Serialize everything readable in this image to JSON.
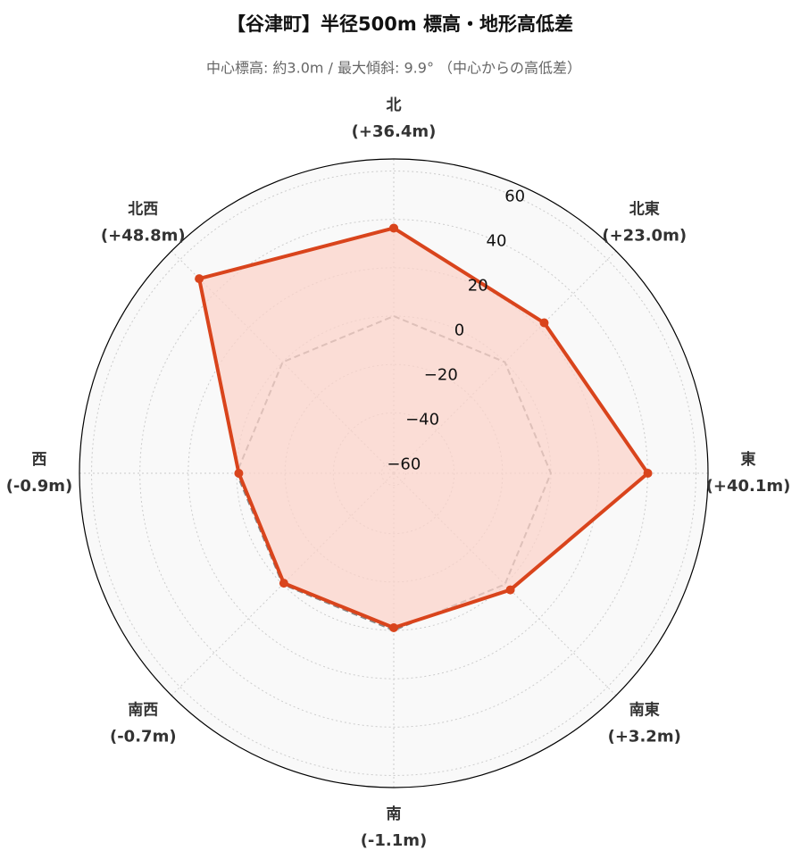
{
  "chart_data": {
    "type": "radar",
    "title": "【谷津町】半径500m 標高・地形高低差",
    "subtitle": "中心標高: 約3.0m / 最大傾斜: 9.9° （中心からの高低差）",
    "categories": [
      "北",
      "北東",
      "東",
      "南東",
      "南",
      "南西",
      "西",
      "北西"
    ],
    "series": [
      {
        "color": "#d9441c",
        "fill": "#fbd3c9",
        "values": [
          36.4,
          23.0,
          40.1,
          3.2,
          -1.1,
          -0.7,
          -0.9,
          48.8
        ],
        "value_labels": [
          "(+36.4m)",
          "(+23.0m)",
          "(+40.1m)",
          "(+3.2m)",
          "(-1.1m)",
          "(-0.7m)",
          "(-0.9m)",
          "(+48.8m)"
        ]
      }
    ],
    "baseline": 0,
    "ylim": [
      -65,
      65
    ],
    "yticks": [
      {
        "value": -60,
        "label": "−60"
      },
      {
        "value": -40,
        "label": "−40"
      },
      {
        "value": -20,
        "label": "−20"
      },
      0,
      20,
      40,
      60
    ],
    "grid": true
  }
}
